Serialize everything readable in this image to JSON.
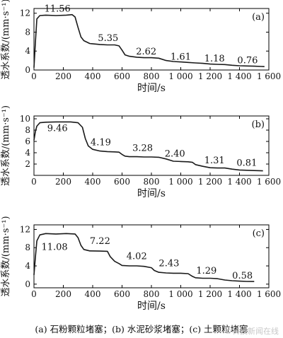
{
  "caption": "(a) 石粉颗粒堵塞；(b) 水泥砂浆堵塞；(c) 土颗粒堵塞",
  "watermark": "©科技新闻在线",
  "colors": {
    "line": "#1a1a1a",
    "axis": "#000000"
  },
  "chart_data": [
    {
      "type": "line",
      "panel_label": "(a)",
      "xlabel": "时间/s",
      "ylabel": "透水系数/(mm·s⁻¹)",
      "xlim": [
        0,
        1600
      ],
      "ylim": [
        0,
        13
      ],
      "xticks": [
        0,
        200,
        400,
        600,
        800,
        1000,
        1200,
        1400,
        1600
      ],
      "xtick_labels": [
        "0",
        "200",
        "400",
        "600",
        "800",
        "1 000",
        "1 200",
        "1 400",
        "1 600"
      ],
      "yticks": [
        0,
        4,
        8,
        12
      ],
      "series": [
        {
          "x": [
            0,
            10,
            20,
            40,
            80,
            150,
            220,
            260,
            280,
            300,
            320,
            340,
            380,
            450,
            500,
            550,
            580,
            600,
            620,
            650,
            700,
            750,
            800,
            850,
            900,
            950,
            1000,
            1050,
            1100,
            1150,
            1200,
            1250,
            1300,
            1350,
            1400,
            1450,
            1500,
            1550,
            1570
          ],
          "y": [
            0.5,
            6,
            10.8,
            11.5,
            11.6,
            11.5,
            11.6,
            11.7,
            11.2,
            9,
            7,
            6.2,
            5.6,
            5.4,
            5.3,
            5.3,
            5.1,
            4.2,
            3.2,
            2.9,
            2.7,
            2.6,
            2.6,
            2.5,
            2.0,
            1.8,
            1.7,
            1.6,
            1.5,
            1.4,
            1.25,
            1.2,
            1.15,
            1.0,
            0.9,
            0.85,
            0.8,
            0.75,
            0.72
          ]
        }
      ],
      "annotations": [
        {
          "text": "11.56",
          "x": 160,
          "y": 12.3
        },
        {
          "text": "5.35",
          "x": 505,
          "y": 6.1
        },
        {
          "text": "2.62",
          "x": 765,
          "y": 3.3
        },
        {
          "text": "1.61",
          "x": 1000,
          "y": 2.2
        },
        {
          "text": "1.18",
          "x": 1230,
          "y": 1.8
        },
        {
          "text": "0.76",
          "x": 1455,
          "y": 1.4
        }
      ]
    },
    {
      "type": "line",
      "panel_label": "(b)",
      "xlabel": "时间/s",
      "ylabel": "透水系数/(mm·s⁻¹)",
      "xlim": [
        0,
        1600
      ],
      "ylim": [
        0,
        10.5
      ],
      "xticks": [
        0,
        200,
        400,
        600,
        800,
        1000,
        1200,
        1400,
        1600
      ],
      "xtick_labels": [
        "0",
        "200",
        "400",
        "600",
        "800",
        "1 000",
        "1 200",
        "1 400",
        "1 600"
      ],
      "yticks": [
        2,
        4,
        6,
        8,
        10
      ],
      "series": [
        {
          "x": [
            0,
            10,
            20,
            40,
            80,
            150,
            250,
            300,
            330,
            350,
            370,
            400,
            450,
            500,
            550,
            580,
            600,
            620,
            650,
            700,
            750,
            800,
            850,
            900,
            950,
            1000,
            1050,
            1080,
            1100,
            1150,
            1200,
            1250,
            1300,
            1350,
            1400,
            1450,
            1500,
            1560
          ],
          "y": [
            6.2,
            7.8,
            8.7,
            9.3,
            9.4,
            9.45,
            9.45,
            9.3,
            8.5,
            6.5,
            5.2,
            4.6,
            4.3,
            4.2,
            4.15,
            4.1,
            3.7,
            3.4,
            3.3,
            3.3,
            3.25,
            3.25,
            3.2,
            2.9,
            2.5,
            2.45,
            2.4,
            2.3,
            1.9,
            1.6,
            1.35,
            1.3,
            1.3,
            1.1,
            0.95,
            0.9,
            0.85,
            0.8
          ]
        }
      ],
      "annotations": [
        {
          "text": "9.46",
          "x": 160,
          "y": 7.8
        },
        {
          "text": "4.19",
          "x": 455,
          "y": 5.3
        },
        {
          "text": "3.28",
          "x": 740,
          "y": 4.3
        },
        {
          "text": "2.40",
          "x": 960,
          "y": 3.3
        },
        {
          "text": "1.31",
          "x": 1230,
          "y": 2.1
        },
        {
          "text": "0.81",
          "x": 1450,
          "y": 1.7
        }
      ]
    },
    {
      "type": "line",
      "panel_label": "(c)",
      "xlabel": "时间/s",
      "ylabel": "透水系数/(mm·s⁻¹)",
      "xlim": [
        0,
        1600
      ],
      "ylim": [
        -0.8,
        13
      ],
      "xticks": [
        0,
        200,
        400,
        600,
        800,
        1000,
        1200,
        1400,
        1600
      ],
      "xtick_labels": [
        "0",
        "200",
        "400",
        "600",
        "800",
        "1 000",
        "1 200",
        "1 400",
        "1 600"
      ],
      "yticks": [
        0,
        4,
        8,
        12
      ],
      "series": [
        {
          "x": [
            0,
            10,
            20,
            40,
            80,
            150,
            220,
            280,
            300,
            320,
            340,
            380,
            450,
            500,
            520,
            550,
            580,
            600,
            650,
            700,
            750,
            800,
            820,
            850,
            900,
            950,
            1000,
            1050,
            1080,
            1100,
            1150,
            1200,
            1250,
            1300,
            1350,
            1400,
            1450,
            1500
          ],
          "y": [
            2,
            6,
            9.5,
            10.8,
            11.1,
            11.0,
            11.1,
            11.0,
            10.2,
            8.5,
            7.6,
            7.3,
            7.25,
            7.2,
            6.0,
            5.0,
            4.5,
            4.1,
            4.0,
            4.0,
            3.9,
            3.6,
            3.0,
            2.6,
            2.45,
            2.4,
            2.4,
            2.3,
            1.7,
            1.4,
            1.3,
            1.29,
            1.2,
            0.9,
            0.75,
            0.65,
            0.6,
            0.58
          ]
        }
      ],
      "annotations": [
        {
          "text": "11.08",
          "x": 140,
          "y": 7.5
        },
        {
          "text": "7.22",
          "x": 450,
          "y": 8.8
        },
        {
          "text": "4.02",
          "x": 700,
          "y": 5.5
        },
        {
          "text": "2.43",
          "x": 920,
          "y": 3.9
        },
        {
          "text": "1.29",
          "x": 1175,
          "y": 2.3
        },
        {
          "text": "0.58",
          "x": 1420,
          "y": 1.2
        }
      ]
    }
  ]
}
